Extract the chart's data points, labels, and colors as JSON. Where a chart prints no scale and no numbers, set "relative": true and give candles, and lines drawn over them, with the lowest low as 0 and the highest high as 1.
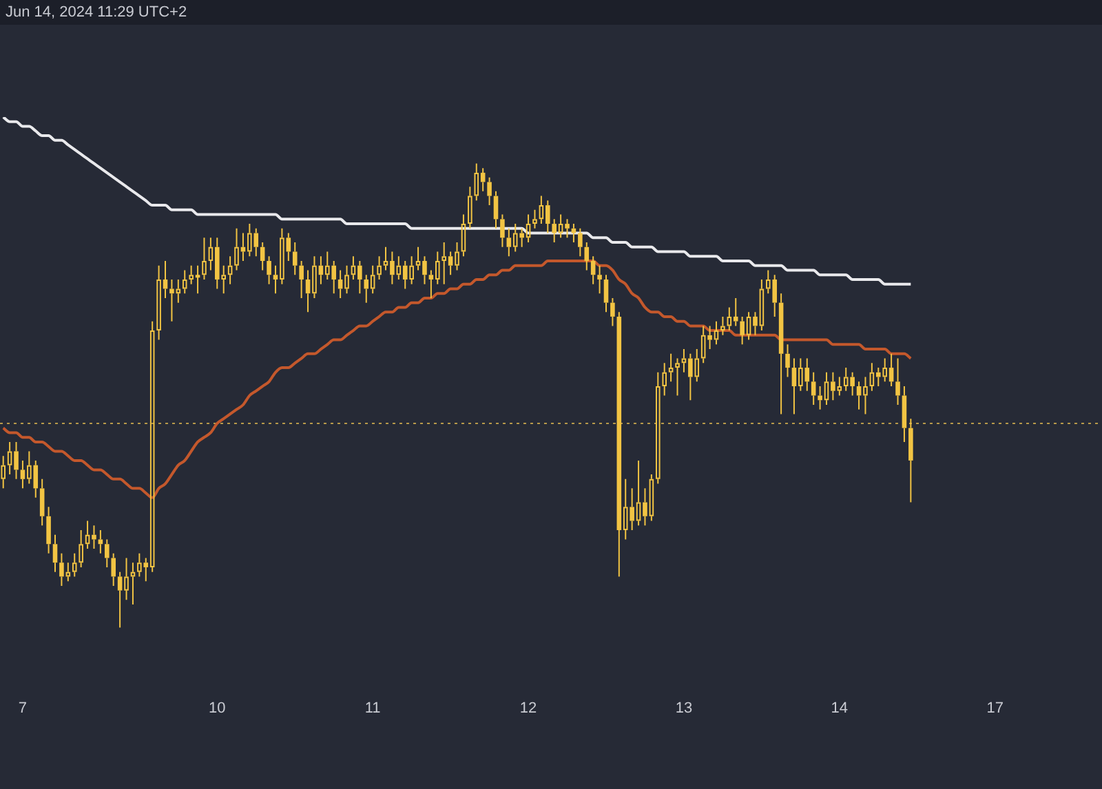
{
  "chart_data": {
    "type": "candlestick",
    "relative": true,
    "color": "#f2c443",
    "annotations": [
      "Jun 14, 2024 11:29 UTC+2"
    ],
    "categories": [
      null,
      null,
      null,
      "7",
      null,
      null,
      null,
      null,
      null,
      null,
      null,
      null,
      null,
      null,
      null,
      null,
      null,
      null,
      null,
      null,
      null,
      null,
      null,
      null,
      null,
      null,
      null,
      null,
      null,
      null,
      null,
      null,
      null,
      "10",
      null,
      null,
      null,
      null,
      null,
      null,
      null,
      null,
      null,
      null,
      null,
      null,
      null,
      null,
      null,
      null,
      null,
      null,
      null,
      null,
      null,
      null,
      null,
      "11",
      null,
      null,
      null,
      null,
      null,
      null,
      null,
      null,
      null,
      null,
      null,
      null,
      null,
      null,
      null,
      null,
      null,
      null,
      null,
      null,
      null,
      null,
      null,
      "12",
      null,
      null,
      null,
      null,
      null,
      null,
      null,
      null,
      null,
      null,
      null,
      null,
      null,
      null,
      null,
      null,
      null,
      null,
      null,
      null,
      null,
      null,
      null,
      "13",
      null,
      null,
      null,
      null,
      null,
      null,
      null,
      null,
      null,
      null,
      null,
      null,
      null,
      null,
      null,
      null,
      null,
      null,
      null,
      null,
      null,
      null,
      null,
      "14",
      null,
      null,
      null,
      null,
      null,
      null,
      null,
      null,
      null,
      null,
      null,
      null,
      null,
      null,
      null,
      null,
      null,
      null,
      null,
      null,
      null,
      null,
      null,
      "17",
      null,
      null,
      null,
      null,
      null,
      null,
      null,
      null,
      null,
      null,
      null,
      null,
      null,
      null,
      null,
      null
    ],
    "ohlc": [
      [
        0.32,
        0.37,
        0.3,
        0.35
      ],
      [
        0.35,
        0.4,
        0.33,
        0.38
      ],
      [
        0.38,
        0.4,
        0.32,
        0.34
      ],
      [
        0.34,
        0.36,
        0.3,
        0.32
      ],
      [
        0.32,
        0.38,
        0.31,
        0.35
      ],
      [
        0.35,
        0.36,
        0.28,
        0.3
      ],
      [
        0.3,
        0.32,
        0.22,
        0.24
      ],
      [
        0.24,
        0.26,
        0.16,
        0.18
      ],
      [
        0.18,
        0.2,
        0.12,
        0.14
      ],
      [
        0.14,
        0.16,
        0.09,
        0.11
      ],
      [
        0.11,
        0.14,
        0.1,
        0.12
      ],
      [
        0.12,
        0.16,
        0.11,
        0.14
      ],
      [
        0.14,
        0.21,
        0.13,
        0.18
      ],
      [
        0.18,
        0.23,
        0.17,
        0.2
      ],
      [
        0.2,
        0.22,
        0.17,
        0.19
      ],
      [
        0.19,
        0.21,
        0.16,
        0.18
      ],
      [
        0.18,
        0.19,
        0.13,
        0.15
      ],
      [
        0.15,
        0.16,
        0.09,
        0.11
      ],
      [
        0.11,
        0.12,
        0.0,
        0.08
      ],
      [
        0.08,
        0.15,
        0.06,
        0.11
      ],
      [
        0.11,
        0.14,
        0.05,
        0.12
      ],
      [
        0.12,
        0.16,
        0.11,
        0.14
      ],
      [
        0.14,
        0.15,
        0.1,
        0.13
      ],
      [
        0.13,
        0.66,
        0.12,
        0.64
      ],
      [
        0.64,
        0.78,
        0.62,
        0.75
      ],
      [
        0.75,
        0.79,
        0.71,
        0.73
      ],
      [
        0.73,
        0.75,
        0.66,
        0.72
      ],
      [
        0.72,
        0.75,
        0.7,
        0.73
      ],
      [
        0.73,
        0.77,
        0.72,
        0.75
      ],
      [
        0.75,
        0.78,
        0.74,
        0.76
      ],
      [
        0.76,
        0.78,
        0.72,
        0.76
      ],
      [
        0.76,
        0.84,
        0.75,
        0.79
      ],
      [
        0.79,
        0.84,
        0.77,
        0.82
      ],
      [
        0.82,
        0.84,
        0.73,
        0.75
      ],
      [
        0.75,
        0.78,
        0.72,
        0.76
      ],
      [
        0.76,
        0.8,
        0.74,
        0.78
      ],
      [
        0.78,
        0.86,
        0.77,
        0.82
      ],
      [
        0.82,
        0.85,
        0.79,
        0.81
      ],
      [
        0.81,
        0.87,
        0.8,
        0.85
      ],
      [
        0.85,
        0.86,
        0.8,
        0.82
      ],
      [
        0.82,
        0.83,
        0.77,
        0.79
      ],
      [
        0.79,
        0.8,
        0.74,
        0.76
      ],
      [
        0.76,
        0.78,
        0.72,
        0.75
      ],
      [
        0.75,
        0.86,
        0.74,
        0.84
      ],
      [
        0.84,
        0.85,
        0.79,
        0.81
      ],
      [
        0.81,
        0.83,
        0.76,
        0.78
      ],
      [
        0.78,
        0.79,
        0.71,
        0.75
      ],
      [
        0.75,
        0.77,
        0.68,
        0.72
      ],
      [
        0.72,
        0.8,
        0.71,
        0.78
      ],
      [
        0.78,
        0.8,
        0.74,
        0.76
      ],
      [
        0.76,
        0.81,
        0.75,
        0.78
      ],
      [
        0.78,
        0.79,
        0.72,
        0.75
      ],
      [
        0.75,
        0.77,
        0.71,
        0.73
      ],
      [
        0.73,
        0.78,
        0.72,
        0.76
      ],
      [
        0.76,
        0.8,
        0.75,
        0.78
      ],
      [
        0.78,
        0.79,
        0.72,
        0.75
      ],
      [
        0.75,
        0.76,
        0.7,
        0.73
      ],
      [
        0.73,
        0.78,
        0.72,
        0.76
      ],
      [
        0.76,
        0.8,
        0.75,
        0.78
      ],
      [
        0.78,
        0.82,
        0.77,
        0.79
      ],
      [
        0.79,
        0.81,
        0.74,
        0.76
      ],
      [
        0.76,
        0.8,
        0.75,
        0.78
      ],
      [
        0.78,
        0.79,
        0.73,
        0.75
      ],
      [
        0.75,
        0.8,
        0.74,
        0.78
      ],
      [
        0.78,
        0.82,
        0.77,
        0.79
      ],
      [
        0.79,
        0.8,
        0.74,
        0.76
      ],
      [
        0.76,
        0.77,
        0.71,
        0.75
      ],
      [
        0.75,
        0.81,
        0.74,
        0.79
      ],
      [
        0.79,
        0.83,
        0.74,
        0.8
      ],
      [
        0.8,
        0.81,
        0.76,
        0.78
      ],
      [
        0.78,
        0.83,
        0.77,
        0.81
      ],
      [
        0.81,
        0.89,
        0.8,
        0.87
      ],
      [
        0.87,
        0.95,
        0.86,
        0.93
      ],
      [
        0.93,
        1.0,
        0.92,
        0.98
      ],
      [
        0.98,
        0.99,
        0.94,
        0.96
      ],
      [
        0.96,
        0.97,
        0.91,
        0.93
      ],
      [
        0.93,
        0.94,
        0.86,
        0.88
      ],
      [
        0.88,
        0.89,
        0.82,
        0.84
      ],
      [
        0.84,
        0.86,
        0.8,
        0.82
      ],
      [
        0.82,
        0.87,
        0.81,
        0.85
      ],
      [
        0.85,
        0.86,
        0.82,
        0.84
      ],
      [
        0.84,
        0.89,
        0.83,
        0.87
      ],
      [
        0.87,
        0.9,
        0.86,
        0.88
      ],
      [
        0.88,
        0.93,
        0.87,
        0.91
      ],
      [
        0.91,
        0.92,
        0.85,
        0.87
      ],
      [
        0.87,
        0.88,
        0.83,
        0.85
      ],
      [
        0.85,
        0.89,
        0.84,
        0.87
      ],
      [
        0.87,
        0.88,
        0.84,
        0.86
      ],
      [
        0.86,
        0.87,
        0.83,
        0.85
      ],
      [
        0.85,
        0.86,
        0.8,
        0.82
      ],
      [
        0.82,
        0.83,
        0.77,
        0.79
      ],
      [
        0.79,
        0.8,
        0.74,
        0.76
      ],
      [
        0.76,
        0.78,
        0.72,
        0.75
      ],
      [
        0.75,
        0.76,
        0.68,
        0.7
      ],
      [
        0.7,
        0.71,
        0.65,
        0.67
      ],
      [
        0.67,
        0.68,
        0.11,
        0.21
      ],
      [
        0.21,
        0.32,
        0.19,
        0.26
      ],
      [
        0.26,
        0.3,
        0.21,
        0.23
      ],
      [
        0.23,
        0.36,
        0.22,
        0.27
      ],
      [
        0.27,
        0.3,
        0.22,
        0.24
      ],
      [
        0.24,
        0.33,
        0.23,
        0.32
      ],
      [
        0.32,
        0.55,
        0.31,
        0.52
      ],
      [
        0.52,
        0.57,
        0.5,
        0.55
      ],
      [
        0.55,
        0.59,
        0.53,
        0.56
      ],
      [
        0.56,
        0.58,
        0.5,
        0.57
      ],
      [
        0.57,
        0.6,
        0.55,
        0.58
      ],
      [
        0.58,
        0.59,
        0.49,
        0.54
      ],
      [
        0.54,
        0.6,
        0.53,
        0.58
      ],
      [
        0.58,
        0.65,
        0.57,
        0.63
      ],
      [
        0.63,
        0.65,
        0.6,
        0.62
      ],
      [
        0.62,
        0.66,
        0.61,
        0.64
      ],
      [
        0.64,
        0.67,
        0.63,
        0.65
      ],
      [
        0.65,
        0.69,
        0.64,
        0.67
      ],
      [
        0.67,
        0.71,
        0.65,
        0.66
      ],
      [
        0.66,
        0.67,
        0.61,
        0.63
      ],
      [
        0.63,
        0.68,
        0.62,
        0.67
      ],
      [
        0.67,
        0.68,
        0.63,
        0.65
      ],
      [
        0.65,
        0.75,
        0.64,
        0.73
      ],
      [
        0.73,
        0.77,
        0.72,
        0.75
      ],
      [
        0.75,
        0.76,
        0.67,
        0.7
      ],
      [
        0.7,
        0.72,
        0.46,
        0.59
      ],
      [
        0.59,
        0.61,
        0.54,
        0.56
      ],
      [
        0.56,
        0.58,
        0.46,
        0.52
      ],
      [
        0.52,
        0.58,
        0.51,
        0.56
      ],
      [
        0.56,
        0.58,
        0.51,
        0.53
      ],
      [
        0.53,
        0.55,
        0.48,
        0.5
      ],
      [
        0.5,
        0.52,
        0.47,
        0.49
      ],
      [
        0.49,
        0.55,
        0.48,
        0.53
      ],
      [
        0.53,
        0.55,
        0.49,
        0.51
      ],
      [
        0.51,
        0.54,
        0.5,
        0.52
      ],
      [
        0.52,
        0.56,
        0.51,
        0.54
      ],
      [
        0.54,
        0.55,
        0.5,
        0.52
      ],
      [
        0.52,
        0.53,
        0.47,
        0.5
      ],
      [
        0.5,
        0.54,
        0.46,
        0.52
      ],
      [
        0.52,
        0.57,
        0.51,
        0.55
      ],
      [
        0.55,
        0.56,
        0.52,
        0.54
      ],
      [
        0.54,
        0.58,
        0.53,
        0.56
      ],
      [
        0.56,
        0.59,
        0.52,
        0.53
      ],
      [
        0.53,
        0.58,
        0.48,
        0.5
      ],
      [
        0.5,
        0.52,
        0.4,
        0.43
      ],
      [
        0.43,
        0.45,
        0.27,
        0.36
      ],
      null,
      null,
      null,
      null,
      null,
      null,
      null,
      null,
      null,
      null,
      null,
      null,
      null,
      null,
      null,
      null,
      null,
      null,
      null,
      null,
      null,
      null,
      null,
      null,
      null,
      null,
      null,
      null,
      null
    ],
    "series": [
      {
        "type": "line",
        "color": "#e9e9ec",
        "values": [
          1.1,
          1.09,
          1.09,
          1.08,
          1.08,
          1.07,
          1.06,
          1.06,
          1.05,
          1.05,
          1.04,
          1.03,
          1.02,
          1.01,
          1.0,
          0.99,
          0.98,
          0.97,
          0.96,
          0.95,
          0.94,
          0.93,
          0.92,
          0.91,
          0.91,
          0.91,
          0.9,
          0.9,
          0.9,
          0.9,
          0.89,
          0.89,
          0.89,
          0.89,
          0.89,
          0.89,
          0.89,
          0.89,
          0.89,
          0.89,
          0.89,
          0.89,
          0.89,
          0.88,
          0.88,
          0.88,
          0.88,
          0.88,
          0.88,
          0.88,
          0.88,
          0.88,
          0.88,
          0.87,
          0.87,
          0.87,
          0.87,
          0.87,
          0.87,
          0.87,
          0.87,
          0.87,
          0.87,
          0.86,
          0.86,
          0.86,
          0.86,
          0.86,
          0.86,
          0.86,
          0.86,
          0.86,
          0.86,
          0.86,
          0.86,
          0.86,
          0.86,
          0.86,
          0.86,
          0.86,
          0.86,
          0.85,
          0.85,
          0.85,
          0.85,
          0.85,
          0.85,
          0.85,
          0.85,
          0.85,
          0.85,
          0.84,
          0.84,
          0.84,
          0.83,
          0.83,
          0.83,
          0.82,
          0.82,
          0.82,
          0.82,
          0.81,
          0.81,
          0.81,
          0.81,
          0.81,
          0.8,
          0.8,
          0.8,
          0.8,
          0.8,
          0.79,
          0.79,
          0.79,
          0.79,
          0.79,
          0.78,
          0.78,
          0.78,
          0.78,
          0.78,
          0.77,
          0.77,
          0.77,
          0.77,
          0.77,
          0.76,
          0.76,
          0.76,
          0.76,
          0.76,
          0.75,
          0.75,
          0.75,
          0.75,
          0.75,
          0.74,
          0.74,
          0.74,
          0.74,
          0.74,
          null,
          null,
          null,
          null,
          null,
          null,
          null,
          null,
          null,
          null,
          null,
          null,
          null,
          null,
          null,
          null,
          null,
          null,
          null,
          null,
          null,
          null,
          null,
          null,
          null,
          null,
          null,
          null,
          null
        ]
      },
      {
        "type": "line",
        "color": "#c4582c",
        "values": [
          0.43,
          0.42,
          0.42,
          0.41,
          0.41,
          0.4,
          0.4,
          0.39,
          0.38,
          0.38,
          0.37,
          0.36,
          0.36,
          0.35,
          0.34,
          0.34,
          0.33,
          0.32,
          0.32,
          0.31,
          0.3,
          0.3,
          0.29,
          0.28,
          0.3,
          0.31,
          0.33,
          0.35,
          0.36,
          0.38,
          0.4,
          0.41,
          0.42,
          0.44,
          0.45,
          0.46,
          0.47,
          0.48,
          0.5,
          0.51,
          0.52,
          0.53,
          0.55,
          0.56,
          0.56,
          0.57,
          0.58,
          0.59,
          0.59,
          0.6,
          0.61,
          0.62,
          0.62,
          0.63,
          0.64,
          0.65,
          0.65,
          0.66,
          0.67,
          0.68,
          0.68,
          0.69,
          0.69,
          0.7,
          0.7,
          0.71,
          0.71,
          0.72,
          0.72,
          0.73,
          0.73,
          0.74,
          0.74,
          0.75,
          0.75,
          0.76,
          0.76,
          0.77,
          0.77,
          0.78,
          0.78,
          0.78,
          0.78,
          0.78,
          0.79,
          0.79,
          0.79,
          0.79,
          0.79,
          0.79,
          0.79,
          0.79,
          0.78,
          0.78,
          0.77,
          0.75,
          0.74,
          0.72,
          0.71,
          0.69,
          0.68,
          0.68,
          0.67,
          0.67,
          0.66,
          0.66,
          0.65,
          0.65,
          0.65,
          0.64,
          0.64,
          0.64,
          0.64,
          0.63,
          0.63,
          0.63,
          0.63,
          0.63,
          0.63,
          0.63,
          0.62,
          0.62,
          0.62,
          0.62,
          0.62,
          0.62,
          0.62,
          0.62,
          0.61,
          0.61,
          0.61,
          0.61,
          0.61,
          0.6,
          0.6,
          0.6,
          0.6,
          0.59,
          0.59,
          0.59,
          0.58,
          null,
          null,
          null,
          null,
          null,
          null,
          null,
          null,
          null,
          null,
          null,
          null,
          null,
          null,
          null,
          null,
          null,
          null,
          null,
          null,
          null,
          null,
          null,
          null,
          null,
          null,
          null,
          null,
          null
        ]
      }
    ],
    "ref_lines": [
      {
        "axis": "y",
        "value": 0.44,
        "color": "#b89a4a",
        "line_style": "dotted"
      }
    ]
  }
}
